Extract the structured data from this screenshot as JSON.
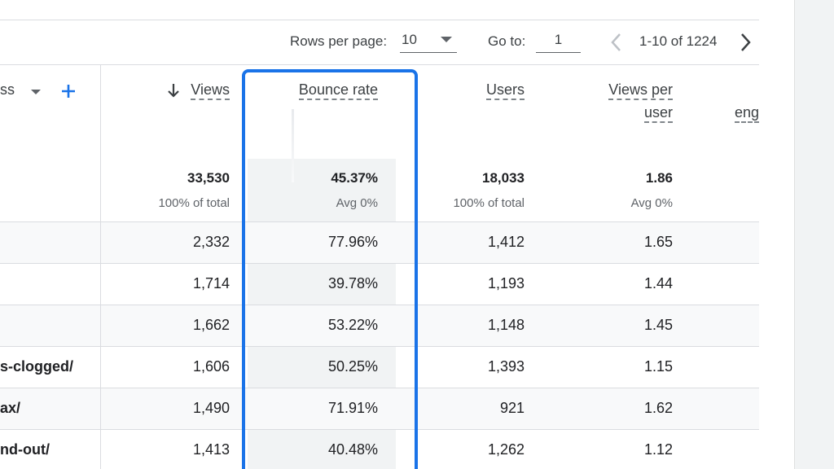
{
  "pagination": {
    "rows_per_page_label": "Rows per page:",
    "rows_per_page_value": "10",
    "goto_label": "Go to:",
    "goto_value": "1",
    "range_text": "1-10 of 1224"
  },
  "dimension": {
    "header_label": "ss"
  },
  "metrics": {
    "views": {
      "header": "Views",
      "total": "33,530",
      "subtotal": "100% of total"
    },
    "bounce_rate": {
      "header": "Bounce rate",
      "total": "45.37%",
      "subtotal": "Avg 0%"
    },
    "users": {
      "header": "Users",
      "total": "18,033",
      "subtotal": "100% of total"
    },
    "views_per_user": {
      "header_line1": "Views per",
      "header_line2": "user",
      "total": "1.86",
      "subtotal": "Avg 0%"
    },
    "engagement": {
      "header": "eng"
    }
  },
  "rows": [
    {
      "dim": "",
      "views": "2,332",
      "bounce": "77.96%",
      "users": "1,412",
      "vpu": "1.65"
    },
    {
      "dim": "",
      "views": "1,714",
      "bounce": "39.78%",
      "users": "1,193",
      "vpu": "1.44"
    },
    {
      "dim": "",
      "views": "1,662",
      "bounce": "53.22%",
      "users": "1,148",
      "vpu": "1.45"
    },
    {
      "dim": "s-clogged/",
      "views": "1,606",
      "bounce": "50.25%",
      "users": "1,393",
      "vpu": "1.15"
    },
    {
      "dim": "ax/",
      "views": "1,490",
      "bounce": "71.91%",
      "users": "921",
      "vpu": "1.62"
    },
    {
      "dim": "nd-out/",
      "views": "1,413",
      "bounce": "40.48%",
      "users": "1,262",
      "vpu": "1.12"
    }
  ],
  "colors": {
    "highlight": "#1a73e8",
    "add_button": "#1a73e8"
  }
}
